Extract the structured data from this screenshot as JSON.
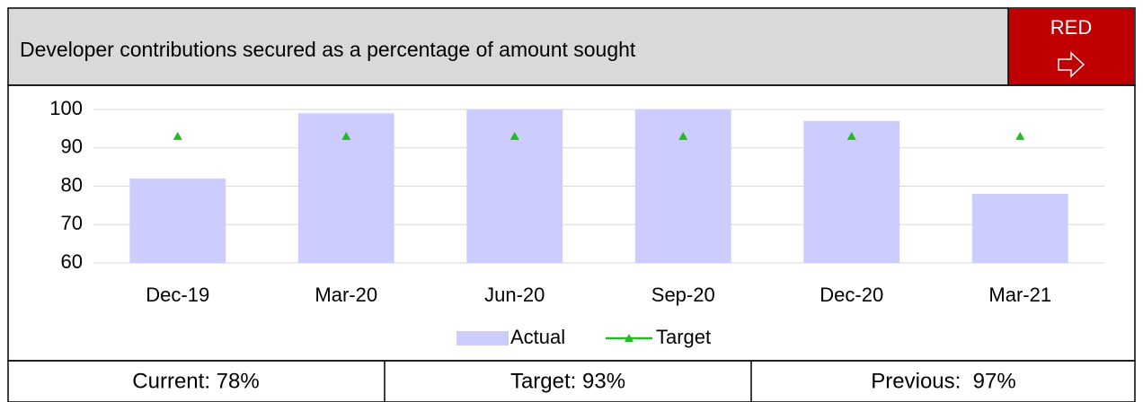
{
  "header": {
    "title": "Developer contributions secured as a percentage of amount sought",
    "status": "RED"
  },
  "chart_data": {
    "type": "bar",
    "categories": [
      "Dec-19",
      "Mar-20",
      "Jun-20",
      "Sep-20",
      "Dec-20",
      "Mar-21"
    ],
    "series": [
      {
        "name": "Actual",
        "type": "bar",
        "color": "#ccccff",
        "values": [
          82,
          99,
          100,
          100,
          97,
          78
        ]
      },
      {
        "name": "Target",
        "type": "line",
        "color": "#22bb22",
        "values": [
          93,
          93,
          93,
          93,
          93,
          93
        ]
      }
    ],
    "ylim": [
      60,
      100
    ],
    "yticks": [
      60,
      70,
      80,
      90,
      100
    ],
    "grid": true,
    "legend": "bottom"
  },
  "footer": {
    "cells": [
      "Current: 78%",
      "Target: 93%",
      "Previous:  97%"
    ]
  }
}
